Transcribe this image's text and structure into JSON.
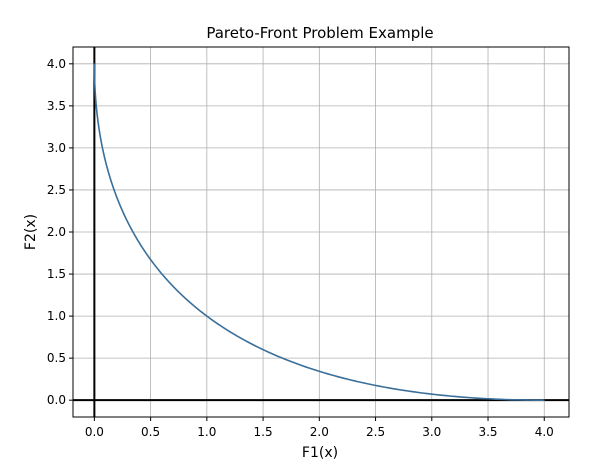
{
  "chart_data": {
    "type": "line",
    "title": "Pareto-Front Problem Example",
    "xlabel": "F1(x)",
    "ylabel": "F2(x)",
    "xlim": [
      -0.19,
      4.22
    ],
    "ylim": [
      -0.2,
      4.2
    ],
    "grid": true,
    "xticks": [
      "0.0",
      "0.5",
      "1.0",
      "1.5",
      "2.0",
      "2.5",
      "3.0",
      "3.5",
      "4.0"
    ],
    "yticks": [
      "0.0",
      "0.5",
      "1.0",
      "1.5",
      "2.0",
      "2.5",
      "3.0",
      "3.5",
      "4.0"
    ],
    "series": [
      {
        "color": "#3a6f9a",
        "x": [
          0.0,
          0.01,
          0.04,
          0.09,
          0.16,
          0.25,
          0.36,
          0.49,
          0.64,
          0.81,
          1.0,
          1.21,
          1.44,
          1.69,
          1.96,
          2.25,
          2.56,
          2.89,
          3.24,
          3.61,
          4.0
        ],
        "y": [
          4.0,
          3.61,
          3.24,
          2.89,
          2.56,
          2.25,
          1.96,
          1.69,
          1.44,
          1.21,
          1.0,
          0.81,
          0.64,
          0.49,
          0.36,
          0.25,
          0.16,
          0.09,
          0.04,
          0.01,
          0.0
        ]
      }
    ],
    "reference_lines": {
      "x": 0,
      "y": 0,
      "color": "#000000"
    }
  }
}
